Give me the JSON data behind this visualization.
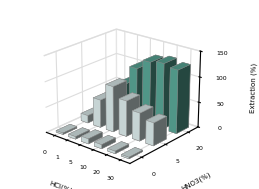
{
  "hcl_labels": [
    "0",
    "1",
    "5",
    "10",
    "20",
    "30"
  ],
  "hno3_labels": [
    "0",
    "5",
    "20"
  ],
  "extraction": [
    [
      3,
      5,
      10,
      8,
      5,
      3
    ],
    [
      15,
      55,
      90,
      70,
      55,
      45
    ],
    [
      20,
      65,
      105,
      125,
      130,
      125
    ]
  ],
  "zlim": [
    0,
    150
  ],
  "zticks": [
    0,
    50,
    100,
    150
  ],
  "zlabel": "Extraction (%)",
  "xlabel": "HCl(%)",
  "ylabel": "HNO3(%)",
  "bar_color_light": "#e0f0f0",
  "bar_color_teal": "#5aaa99",
  "bar_edge_color": "#888888",
  "background_color": "#ffffff",
  "elev": 22,
  "azim": -50
}
